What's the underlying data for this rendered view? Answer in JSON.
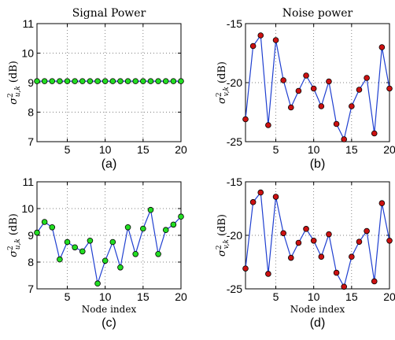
{
  "chart_data": [
    {
      "type": "line",
      "panel_label": "(a)",
      "title": "Signal Power",
      "xlabel": "",
      "ylabel_main": "σ",
      "ylabel_sup": "2",
      "ylabel_sub": "u,k",
      "ylabel_unit": "(dB)",
      "xlim": [
        1,
        20
      ],
      "ylim": [
        7,
        11
      ],
      "xticks": [
        5,
        10,
        15,
        20
      ],
      "yticks": [
        7,
        8,
        9,
        10,
        11
      ],
      "grid": true,
      "marker_color": "#22dd22",
      "line_color": "#1f3fd0",
      "x": [
        1,
        2,
        3,
        4,
        5,
        6,
        7,
        8,
        9,
        10,
        11,
        12,
        13,
        14,
        15,
        16,
        17,
        18,
        19,
        20
      ],
      "y": [
        9.05,
        9.05,
        9.05,
        9.05,
        9.05,
        9.05,
        9.05,
        9.05,
        9.05,
        9.05,
        9.05,
        9.05,
        9.05,
        9.05,
        9.05,
        9.05,
        9.05,
        9.05,
        9.05,
        9.05
      ]
    },
    {
      "type": "line",
      "panel_label": "(b)",
      "title": "Noise power",
      "xlabel": "",
      "ylabel_main": "σ",
      "ylabel_sup": "2",
      "ylabel_sub": "v,k",
      "ylabel_unit": "(dB)",
      "xlim": [
        1,
        20
      ],
      "ylim": [
        -25,
        -15
      ],
      "xticks": [
        5,
        10,
        15,
        20
      ],
      "yticks": [
        -25,
        -20,
        -15
      ],
      "grid": true,
      "marker_color": "#cc1111",
      "line_color": "#1f3fd0",
      "x": [
        1,
        2,
        3,
        4,
        5,
        6,
        7,
        8,
        9,
        10,
        11,
        12,
        13,
        14,
        15,
        16,
        17,
        18,
        19,
        20
      ],
      "y": [
        -23.1,
        -16.9,
        -16.0,
        -23.6,
        -16.4,
        -19.8,
        -22.1,
        -20.7,
        -19.4,
        -20.5,
        -22.0,
        -19.9,
        -23.5,
        -24.8,
        -22.0,
        -20.6,
        -19.6,
        -24.3,
        -17.0,
        -20.5
      ]
    },
    {
      "type": "line",
      "panel_label": "(c)",
      "title": "",
      "xlabel": "Node index",
      "ylabel_main": "σ",
      "ylabel_sup": "2",
      "ylabel_sub": "u,k",
      "ylabel_unit": "(dB)",
      "xlim": [
        1,
        20
      ],
      "ylim": [
        7,
        11
      ],
      "xticks": [
        5,
        10,
        15,
        20
      ],
      "yticks": [
        7,
        8,
        9,
        10,
        11
      ],
      "grid": true,
      "marker_color": "#22dd22",
      "line_color": "#1f3fd0",
      "x": [
        1,
        2,
        3,
        4,
        5,
        6,
        7,
        8,
        9,
        10,
        11,
        12,
        13,
        14,
        15,
        16,
        17,
        18,
        19,
        20
      ],
      "y": [
        9.1,
        9.5,
        9.3,
        8.1,
        8.75,
        8.55,
        8.4,
        8.8,
        7.2,
        8.05,
        8.75,
        7.8,
        9.3,
        8.3,
        9.25,
        9.95,
        8.3,
        9.2,
        9.4,
        9.7
      ]
    },
    {
      "type": "line",
      "panel_label": "(d)",
      "title": "",
      "xlabel": "Node index",
      "ylabel_main": "σ",
      "ylabel_sup": "2",
      "ylabel_sub": "v,k",
      "ylabel_unit": "(dB)",
      "xlim": [
        1,
        20
      ],
      "ylim": [
        -25,
        -15
      ],
      "xticks": [
        5,
        10,
        15,
        20
      ],
      "yticks": [
        -25,
        -20,
        -15
      ],
      "grid": true,
      "marker_color": "#cc1111",
      "line_color": "#1f3fd0",
      "x": [
        1,
        2,
        3,
        4,
        5,
        6,
        7,
        8,
        9,
        10,
        11,
        12,
        13,
        14,
        15,
        16,
        17,
        18,
        19,
        20
      ],
      "y": [
        -23.1,
        -16.9,
        -16.0,
        -23.6,
        -16.4,
        -19.8,
        -22.1,
        -20.7,
        -19.4,
        -20.5,
        -22.0,
        -19.9,
        -23.5,
        -24.8,
        -22.0,
        -20.6,
        -19.6,
        -24.3,
        -17.0,
        -20.5
      ]
    }
  ]
}
